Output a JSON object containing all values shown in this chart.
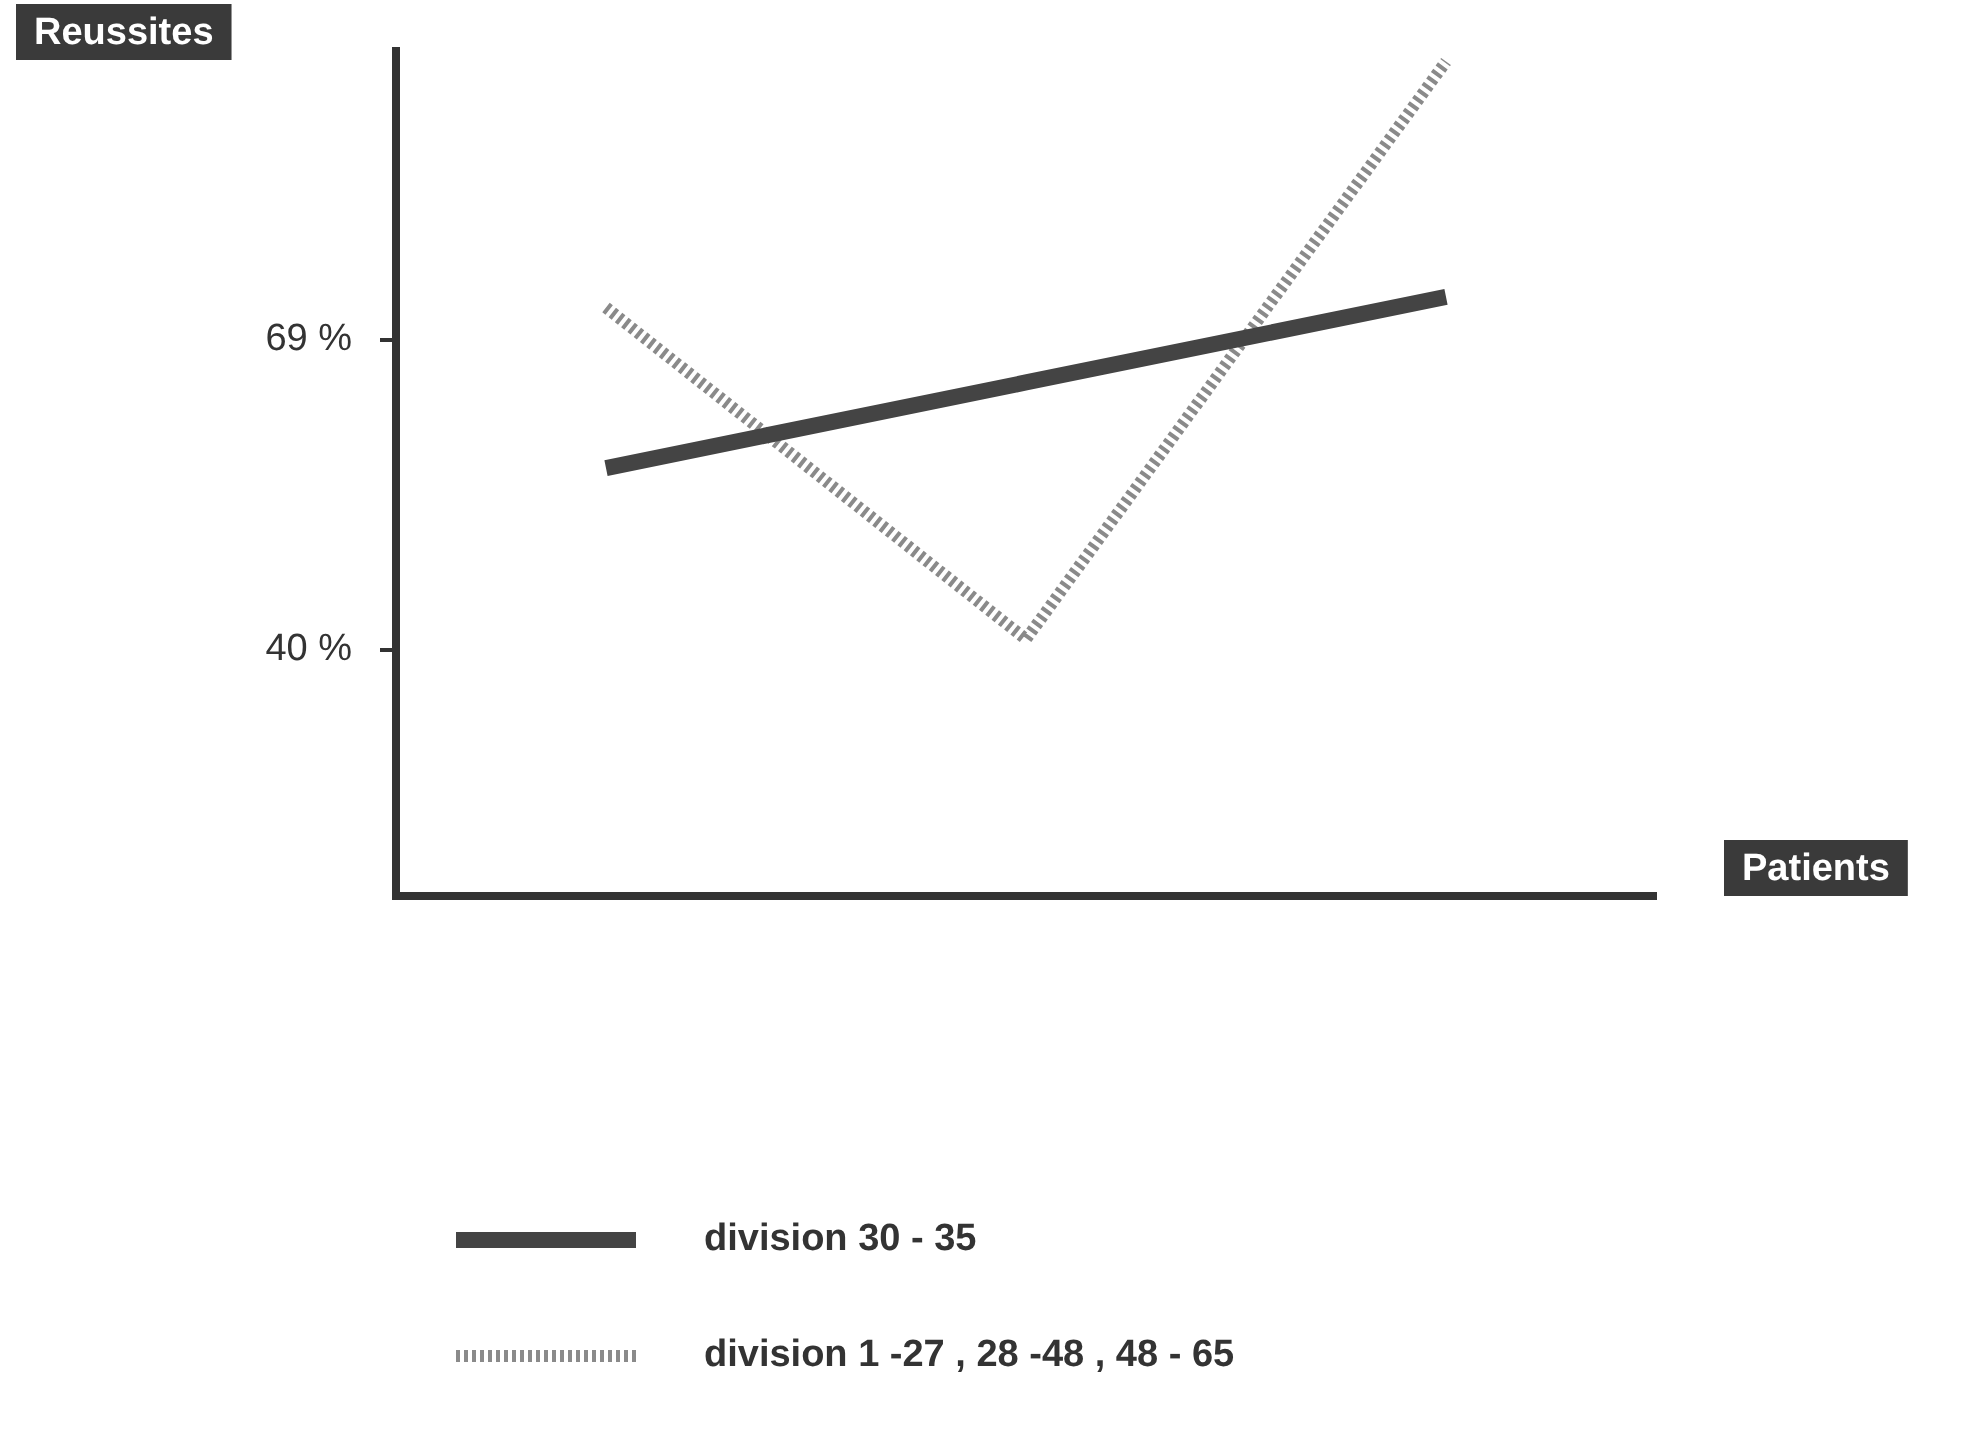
{
  "chart_data": {
    "type": "line",
    "xlabel": "Patients",
    "ylabel": "Reussites",
    "categories": [
      null,
      null,
      null
    ],
    "series": [
      {
        "name": "division 30 - 35",
        "color": "#444444",
        "values": [
          57,
          65,
          73
        ],
        "line_style": "solid"
      },
      {
        "name": "division 1 -27 , 28 -48 , 48 - 65",
        "color": "#8a8a8a",
        "values": [
          72,
          41,
          95
        ],
        "line_style": "dotted"
      }
    ],
    "ylim": [
      17,
      96
    ],
    "yticks": [
      {
        "value": 40,
        "label": "40 %"
      },
      {
        "value": 69,
        "label": "69 %"
      }
    ],
    "grid": false,
    "legend": "bottom",
    "marker": "none"
  }
}
